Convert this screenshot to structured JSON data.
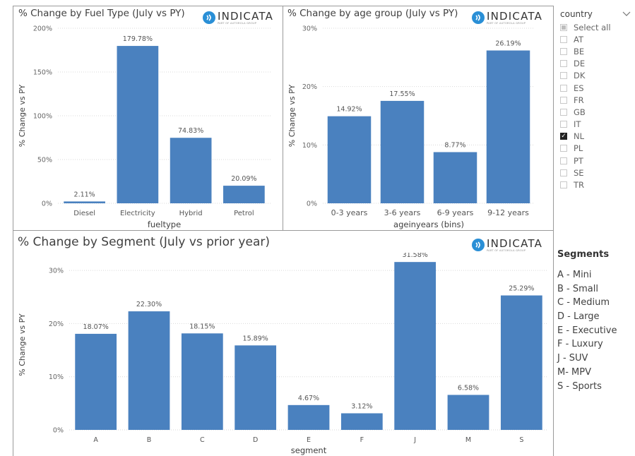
{
  "colors": {
    "bar": "#4a81bf",
    "grid": "#d9d9d9",
    "text": "#404040",
    "logo": "#2a8fd6"
  },
  "logo": {
    "word": "INDICATA",
    "sub": "PART OF AUTOROLA GROUP"
  },
  "fuel_panel": {
    "title": "% Change by Fuel Type (July vs PY)"
  },
  "age_panel": {
    "title": "% Change by age group (July vs PY)"
  },
  "segment_panel": {
    "title": "% Change by Segment (July vs prior year)"
  },
  "chart_data": [
    {
      "type": "bar",
      "title": "% Change by Fuel Type (July vs PY)",
      "xlabel": "fueltype",
      "ylabel": "% Change vs PY",
      "ylim": [
        0,
        200
      ],
      "yticks": [
        0,
        50,
        100,
        150,
        200
      ],
      "ytick_labels": [
        "0%",
        "50%",
        "100%",
        "150%",
        "200%"
      ],
      "categories": [
        "Diesel",
        "Electricity",
        "Hybrid",
        "Petrol"
      ],
      "values": [
        2.11,
        179.78,
        74.83,
        20.09
      ],
      "data_labels": [
        "2.11%",
        "179.78%",
        "74.83%",
        "20.09%"
      ],
      "grid": true
    },
    {
      "type": "bar",
      "title": "% Change by age group (July vs PY)",
      "xlabel": "ageinyears (bins)",
      "ylabel": "% Change vs PY",
      "ylim": [
        0,
        30
      ],
      "yticks": [
        0,
        10,
        20,
        30
      ],
      "ytick_labels": [
        "0%",
        "10%",
        "20%",
        "30%"
      ],
      "categories": [
        "0-3 years",
        "3-6 years",
        "6-9 years",
        "9-12 years"
      ],
      "values": [
        14.92,
        17.55,
        8.77,
        26.19
      ],
      "data_labels": [
        "14.92%",
        "17.55%",
        "8.77%",
        "26.19%"
      ],
      "grid": true
    },
    {
      "type": "bar",
      "title": "% Change by Segment (July vs prior year)",
      "xlabel": "segment",
      "ylabel": "% Change vs PY",
      "ylim": [
        0,
        32
      ],
      "yticks": [
        0,
        10,
        20,
        30
      ],
      "ytick_labels": [
        "0%",
        "10%",
        "20%",
        "30%"
      ],
      "categories": [
        "A",
        "B",
        "C",
        "D",
        "E",
        "F",
        "J",
        "M",
        "S"
      ],
      "values": [
        18.07,
        22.3,
        18.15,
        15.89,
        4.67,
        3.12,
        31.58,
        6.58,
        25.29
      ],
      "data_labels": [
        "18.07%",
        "22.30%",
        "18.15%",
        "15.89%",
        "4.67%",
        "3.12%",
        "31.58%",
        "6.58%",
        "25.29%"
      ],
      "grid": true
    }
  ],
  "slicer": {
    "title": "country",
    "items": [
      {
        "label": "Select all",
        "state": "partial"
      },
      {
        "label": "AT",
        "state": "off"
      },
      {
        "label": "BE",
        "state": "off"
      },
      {
        "label": "DE",
        "state": "off"
      },
      {
        "label": "DK",
        "state": "off"
      },
      {
        "label": "ES",
        "state": "off"
      },
      {
        "label": "FR",
        "state": "off"
      },
      {
        "label": "GB",
        "state": "off"
      },
      {
        "label": "IT",
        "state": "off"
      },
      {
        "label": "NL",
        "state": "on"
      },
      {
        "label": "PL",
        "state": "off"
      },
      {
        "label": "PT",
        "state": "off"
      },
      {
        "label": "SE",
        "state": "off"
      },
      {
        "label": "TR",
        "state": "off"
      }
    ]
  },
  "segments_legend": {
    "title": "Segments",
    "items": [
      "A - Mini",
      "B - Small",
      "C - Medium",
      "D - Large",
      "E - Executive",
      "F - Luxury",
      "J - SUV",
      "M- MPV",
      "S - Sports"
    ]
  }
}
